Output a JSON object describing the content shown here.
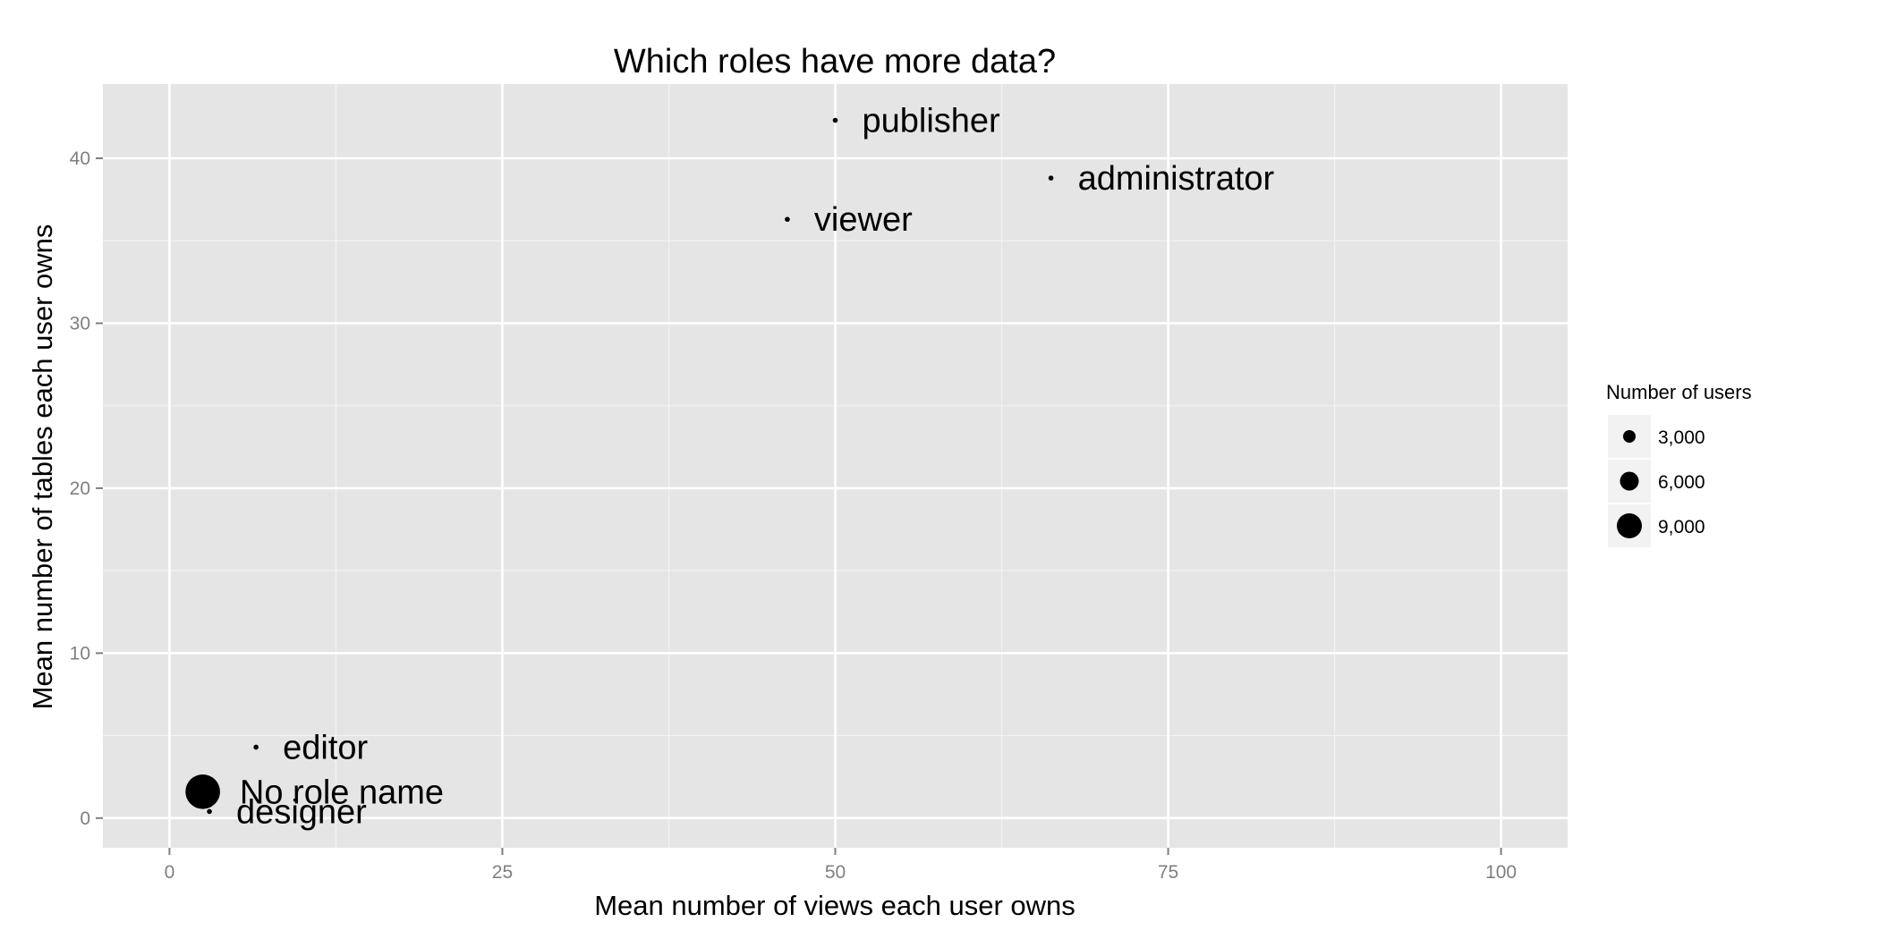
{
  "chart_data": {
    "type": "scatter",
    "title": "Which roles have more data?",
    "xlabel": "Mean number of views each user owns",
    "ylabel": "Mean number of tables each user owns",
    "xlim": [
      -5,
      105
    ],
    "ylim": [
      -1.8,
      44.5
    ],
    "x_ticks": [
      0,
      25,
      50,
      75,
      100
    ],
    "y_ticks": [
      0,
      10,
      20,
      30,
      40
    ],
    "x_tick_labels": [
      "0",
      "25",
      "50",
      "75",
      "100"
    ],
    "y_tick_labels": [
      "0",
      "10",
      "20",
      "30",
      "40"
    ],
    "grid": true,
    "points": [
      {
        "label": "publisher",
        "x": 50,
        "y": 42.3,
        "users": 300
      },
      {
        "label": "administrator",
        "x": 66.2,
        "y": 38.8,
        "users": 300
      },
      {
        "label": "viewer",
        "x": 46.4,
        "y": 36.3,
        "users": 300
      },
      {
        "label": "editor",
        "x": 6.5,
        "y": 4.3,
        "users": 300
      },
      {
        "label": "No role name",
        "x": 2.5,
        "y": 1.6,
        "users": 9500
      },
      {
        "label": "designer",
        "x": 3,
        "y": 0.4,
        "users": 300
      }
    ],
    "legend": {
      "title": "Number of users",
      "position": "right",
      "entries": [
        {
          "label": "3,000",
          "value": 3000
        },
        {
          "label": "6,000",
          "value": 6000
        },
        {
          "label": "9,000",
          "value": 9000
        }
      ]
    },
    "colors": {
      "panel_background": "#e5e5e5",
      "grid_major": "#ffffff",
      "grid_minor": "#f2f2f2",
      "point": "#000000",
      "legend_key_background": "#f2f2f2"
    }
  }
}
